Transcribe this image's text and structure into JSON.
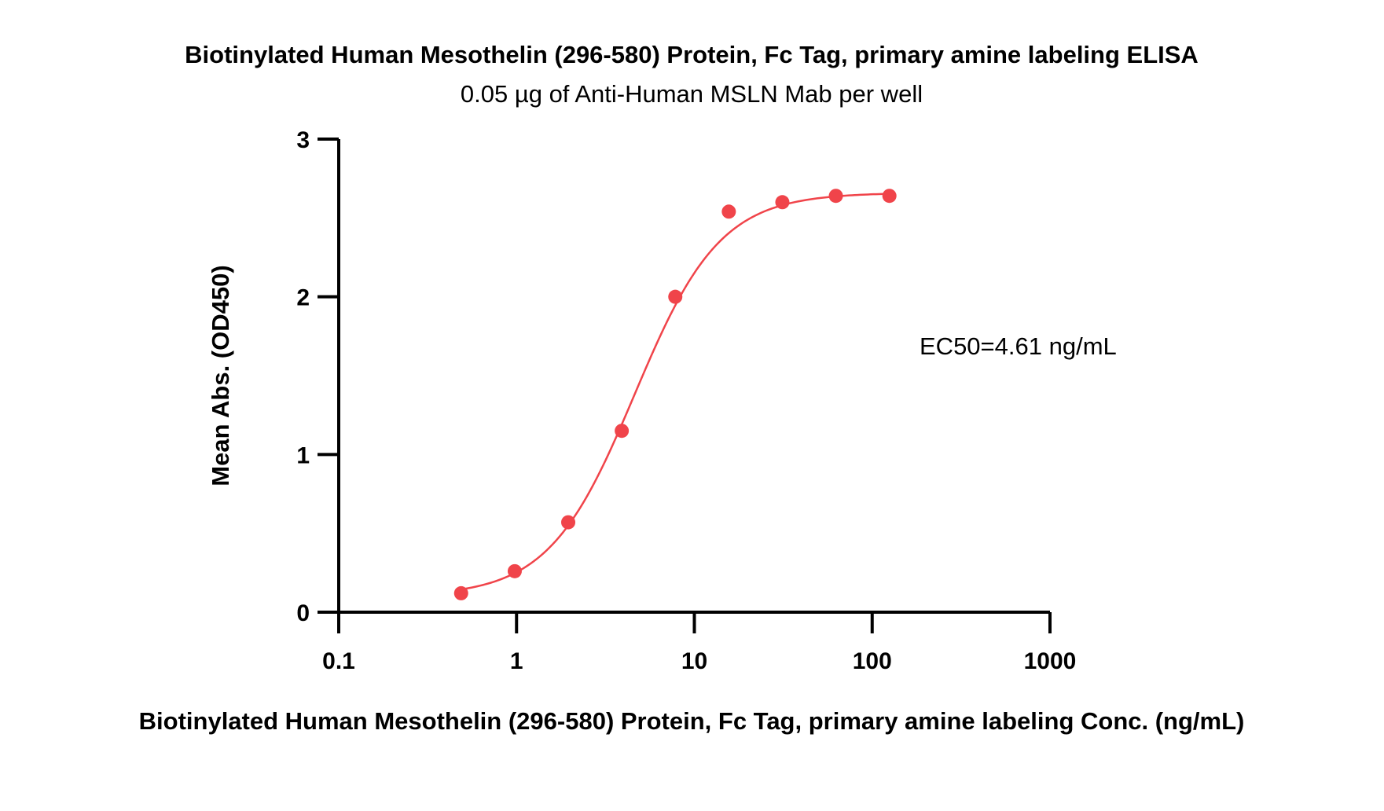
{
  "chart_data": {
    "type": "scatter",
    "title": "Biotinylated Human Mesothelin (296-580) Protein, Fc Tag, primary amine labeling ELISA",
    "subtitle": "0.05 µg of Anti-Human MSLN Mab per well",
    "xlabel": "Biotinylated Human Mesothelin (296-580) Protein, Fc Tag, primary amine labeling Conc. (ng/mL)",
    "ylabel": "Mean Abs. (OD450)",
    "x_scale": "log",
    "xlim": [
      0.1,
      1000
    ],
    "ylim": [
      0,
      3
    ],
    "x_ticks": [
      {
        "value": 0.1,
        "label": "0.1"
      },
      {
        "value": 1,
        "label": "1"
      },
      {
        "value": 10,
        "label": "10"
      },
      {
        "value": 100,
        "label": "100"
      },
      {
        "value": 1000,
        "label": "1000"
      }
    ],
    "y_ticks": [
      {
        "value": 0,
        "label": "0"
      },
      {
        "value": 1,
        "label": "1"
      },
      {
        "value": 2,
        "label": "2"
      },
      {
        "value": 3,
        "label": "3"
      }
    ],
    "grid": false,
    "series": [
      {
        "x": [
          0.488,
          0.977,
          1.953,
          3.906,
          7.813,
          15.625,
          31.25,
          62.5,
          125
        ],
        "y": [
          0.12,
          0.26,
          0.57,
          1.15,
          2.0,
          2.54,
          2.6,
          2.64,
          2.64
        ],
        "color": "#f0444a",
        "fit": "4PL",
        "fit_range": [
          0.488,
          125
        ]
      }
    ],
    "fit_params": {
      "bottom": 0.1,
      "top": 2.66,
      "ec50": 4.61,
      "hill": 1.8
    },
    "annotation": "EC50=4.61 ng/mL"
  }
}
